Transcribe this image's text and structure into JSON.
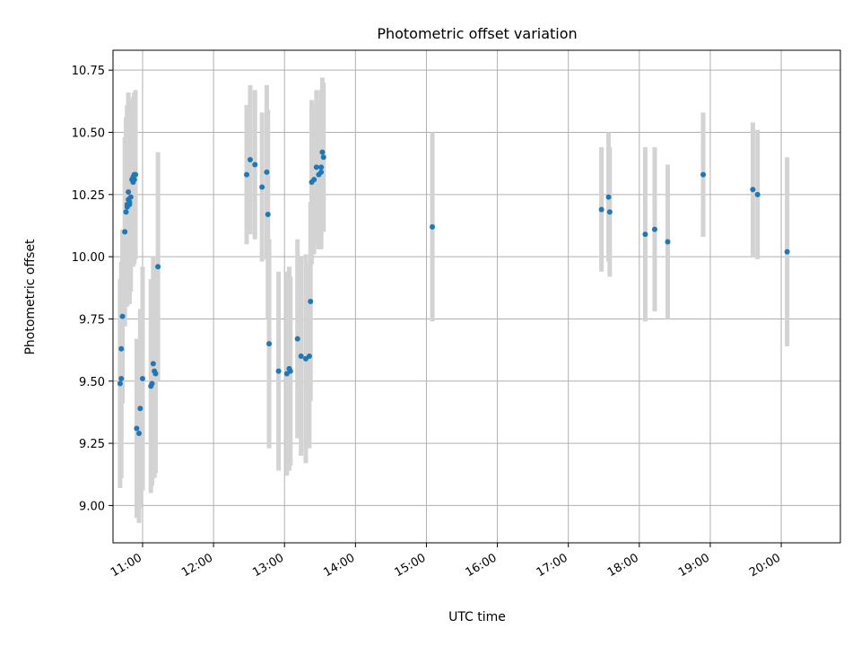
{
  "chart_data": {
    "type": "scatter",
    "title": "Photometric offset variation",
    "xlabel": "UTC time",
    "ylabel": "Photometric offset",
    "x_ticks": [
      "11:00",
      "12:00",
      "13:00",
      "14:00",
      "15:00",
      "16:00",
      "17:00",
      "18:00",
      "19:00",
      "20:00"
    ],
    "y_ticks": [
      "9.00",
      "9.25",
      "9.50",
      "9.75",
      "10.00",
      "10.25",
      "10.50",
      "10.75"
    ],
    "xlim": [
      "10:35",
      "20:50"
    ],
    "ylim": [
      8.85,
      10.83
    ],
    "grid": true,
    "colors": {
      "point": "#1f77b4",
      "errorbar": "#d3d3d3",
      "grid": "#b0b0b0"
    },
    "series": [
      {
        "x": [
          "10:41",
          "10:42",
          "10:42",
          "10:43",
          "10:45",
          "10:46",
          "10:47",
          "10:47",
          "10:48",
          "10:48",
          "10:49",
          "10:49",
          "10:50",
          "10:51",
          "10:52",
          "10:52",
          "10:53",
          "10:53",
          "10:54",
          "10:55",
          "10:57",
          "10:58",
          "11:00",
          "11:07",
          "11:08",
          "11:09",
          "11:10",
          "11:11",
          "11:13",
          "12:28",
          "12:31",
          "12:35",
          "12:41",
          "12:45",
          "12:46",
          "12:47",
          "12:55",
          "13:02",
          "13:04",
          "13:05",
          "13:11",
          "13:14",
          "13:18",
          "13:21",
          "13:22",
          "13:23",
          "13:25",
          "13:27",
          "13:29",
          "13:31",
          "13:31",
          "13:32",
          "13:33"
        ],
        "y": [
          9.49,
          9.51,
          9.63,
          9.76,
          10.1,
          10.18,
          10.2,
          10.21,
          10.23,
          10.26,
          10.21,
          10.22,
          10.24,
          10.31,
          10.3,
          10.32,
          10.31,
          10.33,
          10.33,
          9.31,
          9.29,
          9.39,
          9.51,
          9.48,
          9.49,
          9.57,
          9.54,
          9.53,
          9.96,
          10.33,
          10.39,
          10.37,
          10.28,
          10.34,
          10.17,
          9.65,
          9.54,
          9.53,
          9.55,
          9.54,
          9.67,
          9.6,
          9.59,
          9.6,
          9.82,
          10.3,
          10.31,
          10.36,
          10.33,
          10.36,
          10.34,
          10.42,
          10.4
        ],
        "yerr": [
          0.42,
          0.4,
          0.35,
          0.35,
          0.38,
          0.38,
          0.4,
          0.4,
          0.42,
          0.4,
          0.4,
          0.38,
          0.38,
          0.32,
          0.34,
          0.32,
          0.34,
          0.33,
          0.34,
          0.36,
          0.36,
          0.4,
          0.45,
          0.43,
          0.41,
          0.43,
          0.43,
          0.4,
          0.46,
          0.28,
          0.3,
          0.3,
          0.3,
          0.35,
          0.42,
          0.42,
          0.4,
          0.41,
          0.41,
          0.38,
          0.4,
          0.4,
          0.42,
          0.37,
          0.4,
          0.33,
          0.3,
          0.31,
          0.3,
          0.31,
          0.31,
          0.3,
          0.3
        ]
      },
      {
        "x": [
          "15:05",
          "17:28",
          "17:34",
          "17:35",
          "18:05",
          "18:13",
          "18:24",
          "18:54",
          "19:36",
          "19:40",
          "20:05"
        ],
        "y": [
          10.12,
          10.19,
          10.24,
          10.18,
          10.09,
          10.11,
          10.06,
          10.33,
          10.27,
          10.25,
          10.02
        ],
        "yerr": [
          0.38,
          0.25,
          0.26,
          0.26,
          0.35,
          0.33,
          0.31,
          0.25,
          0.27,
          0.26,
          0.38
        ]
      }
    ]
  }
}
